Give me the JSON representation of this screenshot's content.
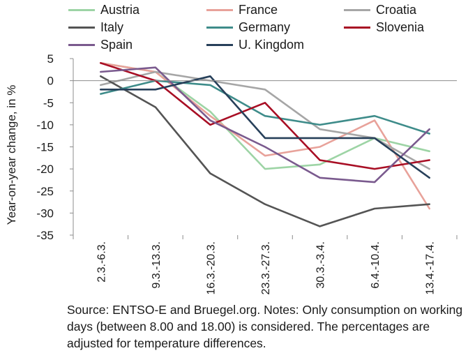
{
  "chart_data": {
    "type": "line",
    "title": "",
    "xlabel": "",
    "ylabel": "Year-on-year change, in %",
    "ylim": [
      -35,
      5
    ],
    "yticks": [
      5,
      0,
      -5,
      -10,
      -15,
      -20,
      -25,
      -30,
      -35
    ],
    "grid": false,
    "legend_position": "top",
    "categories": [
      "2.3.-6.3.",
      "9.3.-13.3.",
      "16.3.-20.3.",
      "23.3.-27.3.",
      "30.3.-3.4.",
      "6.4.-10.4.",
      "13.4.-17.4."
    ],
    "series": [
      {
        "name": "Austria",
        "color": "#9dd4a5",
        "values": [
          4,
          2,
          -7,
          -20,
          -19,
          -13,
          -16
        ]
      },
      {
        "name": "France",
        "color": "#e8a29a",
        "values": [
          4,
          2,
          -8,
          -17,
          -15,
          -9,
          -29
        ]
      },
      {
        "name": "Croatia",
        "color": "#a6a6a6",
        "values": [
          -1,
          2,
          0,
          -2,
          -11,
          -13,
          -20
        ]
      },
      {
        "name": "Italy",
        "color": "#545454",
        "values": [
          1,
          -6,
          -21,
          -28,
          -33,
          -29,
          -28
        ]
      },
      {
        "name": "Germany",
        "color": "#3e8c8a",
        "values": [
          -3,
          0,
          -1,
          -8,
          -10,
          -8,
          -12
        ]
      },
      {
        "name": "Slovenia",
        "color": "#a80e24",
        "values": [
          4,
          0,
          -10,
          -5,
          -18,
          -20,
          -18
        ]
      },
      {
        "name": "Spain",
        "color": "#7a5a8e",
        "values": [
          2,
          3,
          -9,
          -15,
          -22,
          -23,
          -11
        ]
      },
      {
        "name": "U. Kingdom",
        "color": "#27405a",
        "values": [
          -2,
          -2,
          1,
          -13,
          -13,
          -13,
          -22
        ]
      }
    ]
  },
  "note": "Source: ENTSO-E and Bruegel.org. Notes: Only consumption on working days (between 8.00 and 18.00) is considered. The percentages are adjusted for temperature differences."
}
